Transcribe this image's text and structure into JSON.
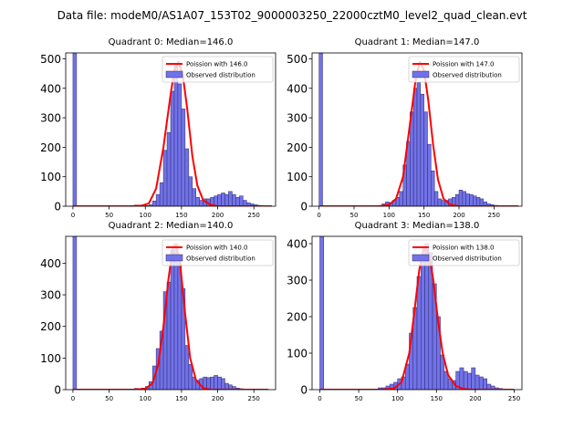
{
  "figure": {
    "suptitle": "Data file: modeM0/AS1A07_153T02_9000003250_22000cztM0_level2_quad_clean.evt",
    "colors": {
      "hist_fill": "#7272e8",
      "hist_edge": "#2b2b6e",
      "fit_line": "#ff0000"
    }
  },
  "chart_data": [
    {
      "type": "bar",
      "title": "Quadrant 0: Median=146.0",
      "legend": [
        "Poission with 146.0",
        "Observed distribution"
      ],
      "legend_position": "top-right",
      "xlim": [
        -10,
        280
      ],
      "ylim": [
        0,
        520
      ],
      "xticks": [
        "0",
        "50",
        "100",
        "150",
        "200",
        "250"
      ],
      "yticks": [
        "0",
        "100",
        "200",
        "300",
        "400",
        "500"
      ],
      "histogram": {
        "bin_width": 5,
        "bins": [
          [
            0,
            520
          ],
          [
            85,
            4
          ],
          [
            90,
            4
          ],
          [
            100,
            2
          ],
          [
            105,
            5
          ],
          [
            110,
            18
          ],
          [
            115,
            40
          ],
          [
            120,
            80
          ],
          [
            125,
            190
          ],
          [
            130,
            250
          ],
          [
            135,
            390
          ],
          [
            140,
            480
          ],
          [
            145,
            415
          ],
          [
            150,
            330
          ],
          [
            155,
            195
          ],
          [
            160,
            100
          ],
          [
            165,
            60
          ],
          [
            170,
            30
          ],
          [
            175,
            20
          ],
          [
            180,
            25
          ],
          [
            185,
            25
          ],
          [
            190,
            30
          ],
          [
            195,
            35
          ],
          [
            200,
            40
          ],
          [
            205,
            45
          ],
          [
            210,
            40
          ],
          [
            215,
            50
          ],
          [
            220,
            40
          ],
          [
            225,
            30
          ],
          [
            230,
            35
          ],
          [
            235,
            20
          ],
          [
            240,
            12
          ],
          [
            245,
            8
          ],
          [
            250,
            5
          ],
          [
            255,
            3
          ]
        ]
      },
      "fit": {
        "name": "Poission with 146.0",
        "points": [
          [
            0,
            0
          ],
          [
            80,
            0
          ],
          [
            95,
            2
          ],
          [
            105,
            10
          ],
          [
            115,
            60
          ],
          [
            125,
            200
          ],
          [
            135,
            380
          ],
          [
            140,
            460
          ],
          [
            146,
            490
          ],
          [
            152,
            440
          ],
          [
            158,
            330
          ],
          [
            165,
            170
          ],
          [
            172,
            70
          ],
          [
            180,
            20
          ],
          [
            190,
            5
          ],
          [
            200,
            0
          ],
          [
            275,
            0
          ]
        ]
      }
    },
    {
      "type": "bar",
      "title": "Quadrant 1: Median=147.0",
      "legend": [
        "Poission with 147.0",
        "Observed distribution"
      ],
      "legend_position": "top-right",
      "xlim": [
        -10,
        290
      ],
      "ylim": [
        0,
        520
      ],
      "xticks": [
        "0",
        "50",
        "100",
        "150",
        "200",
        "250"
      ],
      "yticks": [
        "0",
        "100",
        "200",
        "300",
        "400",
        "500"
      ],
      "histogram": {
        "bin_width": 5,
        "bins": [
          [
            0,
            520
          ],
          [
            90,
            8
          ],
          [
            95,
            15
          ],
          [
            100,
            12
          ],
          [
            105,
            20
          ],
          [
            110,
            30
          ],
          [
            115,
            50
          ],
          [
            120,
            140
          ],
          [
            125,
            220
          ],
          [
            130,
            320
          ],
          [
            135,
            400
          ],
          [
            140,
            420
          ],
          [
            145,
            380
          ],
          [
            150,
            320
          ],
          [
            155,
            210
          ],
          [
            160,
            120
          ],
          [
            165,
            50
          ],
          [
            170,
            25
          ],
          [
            175,
            20
          ],
          [
            180,
            20
          ],
          [
            185,
            25
          ],
          [
            190,
            30
          ],
          [
            195,
            40
          ],
          [
            200,
            55
          ],
          [
            205,
            50
          ],
          [
            210,
            42
          ],
          [
            215,
            40
          ],
          [
            220,
            35
          ],
          [
            225,
            30
          ],
          [
            230,
            25
          ],
          [
            235,
            15
          ],
          [
            240,
            8
          ],
          [
            245,
            5
          ],
          [
            250,
            3
          ],
          [
            255,
            2
          ],
          [
            260,
            1
          ]
        ]
      },
      "fit": {
        "name": "Poission with 147.0",
        "points": [
          [
            0,
            0
          ],
          [
            85,
            0
          ],
          [
            100,
            5
          ],
          [
            110,
            25
          ],
          [
            120,
            100
          ],
          [
            130,
            280
          ],
          [
            138,
            430
          ],
          [
            144,
            490
          ],
          [
            150,
            460
          ],
          [
            156,
            360
          ],
          [
            163,
            210
          ],
          [
            170,
            90
          ],
          [
            178,
            25
          ],
          [
            188,
            5
          ],
          [
            200,
            0
          ],
          [
            285,
            0
          ]
        ]
      }
    },
    {
      "type": "bar",
      "title": "Quadrant 2: Median=140.0",
      "legend": [
        "Poission with 140.0",
        "Observed distribution"
      ],
      "legend_position": "top-right",
      "xlim": [
        -10,
        280
      ],
      "ylim": [
        0,
        485
      ],
      "xticks": [
        "0",
        "50",
        "100",
        "150",
        "200",
        "250"
      ],
      "yticks": [
        "0",
        "100",
        "200",
        "300",
        "400"
      ],
      "histogram": {
        "bin_width": 5,
        "bins": [
          [
            0,
            485
          ],
          [
            85,
            4
          ],
          [
            95,
            5
          ],
          [
            100,
            10
          ],
          [
            105,
            25
          ],
          [
            110,
            75
          ],
          [
            115,
            130
          ],
          [
            120,
            185
          ],
          [
            125,
            310
          ],
          [
            130,
            340
          ],
          [
            135,
            440
          ],
          [
            140,
            460
          ],
          [
            145,
            400
          ],
          [
            150,
            320
          ],
          [
            155,
            140
          ],
          [
            160,
            80
          ],
          [
            165,
            40
          ],
          [
            170,
            30
          ],
          [
            175,
            35
          ],
          [
            180,
            40
          ],
          [
            185,
            38
          ],
          [
            190,
            40
          ],
          [
            195,
            45
          ],
          [
            200,
            40
          ],
          [
            205,
            35
          ],
          [
            210,
            20
          ],
          [
            215,
            15
          ],
          [
            220,
            10
          ],
          [
            225,
            5
          ],
          [
            230,
            3
          ],
          [
            235,
            2
          ]
        ]
      },
      "fit": {
        "name": "Poission with 140.0",
        "points": [
          [
            0,
            0
          ],
          [
            85,
            0
          ],
          [
            100,
            3
          ],
          [
            110,
            20
          ],
          [
            118,
            80
          ],
          [
            125,
            200
          ],
          [
            132,
            350
          ],
          [
            138,
            450
          ],
          [
            142,
            460
          ],
          [
            148,
            400
          ],
          [
            155,
            240
          ],
          [
            162,
            100
          ],
          [
            170,
            30
          ],
          [
            180,
            5
          ],
          [
            190,
            0
          ],
          [
            270,
            0
          ]
        ]
      }
    },
    {
      "type": "bar",
      "title": "Quadrant 3: Median=138.0",
      "legend": [
        "Poission with 138.0",
        "Observed distribution"
      ],
      "legend_position": "top-right",
      "xlim": [
        -10,
        260
      ],
      "ylim": [
        0,
        420
      ],
      "xticks": [
        "0",
        "50",
        "100",
        "150",
        "200",
        "250"
      ],
      "yticks": [
        "0",
        "100",
        "200",
        "300",
        "400"
      ],
      "histogram": {
        "bin_width": 5,
        "bins": [
          [
            0,
            420
          ],
          [
            75,
            5
          ],
          [
            80,
            5
          ],
          [
            85,
            10
          ],
          [
            90,
            15
          ],
          [
            95,
            20
          ],
          [
            100,
            30
          ],
          [
            105,
            35
          ],
          [
            110,
            70
          ],
          [
            115,
            155
          ],
          [
            120,
            225
          ],
          [
            125,
            310
          ],
          [
            130,
            350
          ],
          [
            135,
            400
          ],
          [
            140,
            375
          ],
          [
            145,
            290
          ],
          [
            150,
            200
          ],
          [
            155,
            95
          ],
          [
            160,
            50
          ],
          [
            165,
            30
          ],
          [
            170,
            25
          ],
          [
            175,
            50
          ],
          [
            180,
            60
          ],
          [
            185,
            50
          ],
          [
            190,
            45
          ],
          [
            195,
            60
          ],
          [
            200,
            40
          ],
          [
            205,
            35
          ],
          [
            210,
            30
          ],
          [
            215,
            15
          ],
          [
            220,
            10
          ],
          [
            225,
            5
          ],
          [
            230,
            3
          ],
          [
            235,
            2
          ]
        ]
      },
      "fit": {
        "name": "Poission with 138.0",
        "points": [
          [
            0,
            0
          ],
          [
            80,
            0
          ],
          [
            95,
            3
          ],
          [
            105,
            20
          ],
          [
            115,
            100
          ],
          [
            122,
            220
          ],
          [
            128,
            330
          ],
          [
            134,
            390
          ],
          [
            140,
            375
          ],
          [
            146,
            300
          ],
          [
            152,
            190
          ],
          [
            158,
            100
          ],
          [
            165,
            40
          ],
          [
            175,
            10
          ],
          [
            185,
            2
          ],
          [
            195,
            0
          ],
          [
            250,
            0
          ]
        ]
      }
    }
  ]
}
